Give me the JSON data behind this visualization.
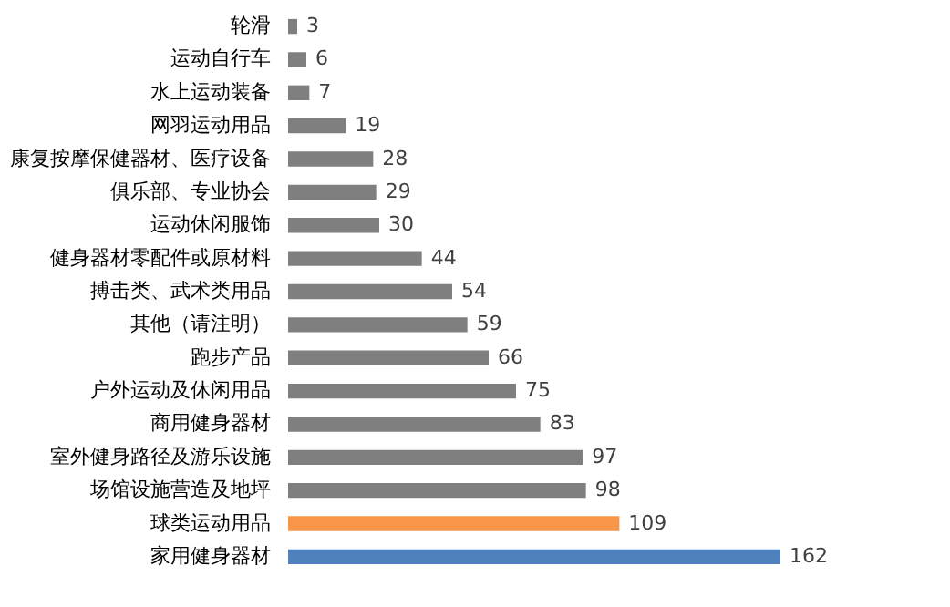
{
  "chart_data": {
    "type": "bar",
    "orientation": "horizontal",
    "data_labels": true,
    "categories": [
      "轮滑",
      "运动自行车",
      "水上运动装备",
      "网羽运动用品",
      "康复按摩保健器材、医疗设备",
      "俱乐部、专业协会",
      "运动休闲服饰",
      "健身器材零配件或原材料",
      "搏击类、武术类用品",
      "其他（请注明）",
      "跑步产品",
      "户外运动及休闲用品",
      "商用健身器材",
      "室外健身路径及游乐设施",
      "场馆设施营造及地坪",
      "球类运动用品",
      "家用健身器材"
    ],
    "values": [
      3,
      6,
      7,
      19,
      28,
      29,
      30,
      44,
      54,
      59,
      66,
      75,
      83,
      97,
      98,
      109,
      162
    ],
    "colors": [
      "#7f7f7f",
      "#7f7f7f",
      "#7f7f7f",
      "#7f7f7f",
      "#7f7f7f",
      "#7f7f7f",
      "#7f7f7f",
      "#7f7f7f",
      "#7f7f7f",
      "#7f7f7f",
      "#7f7f7f",
      "#7f7f7f",
      "#7f7f7f",
      "#7f7f7f",
      "#7f7f7f",
      "#f79646",
      "#4f81bd"
    ],
    "grid": false
  }
}
